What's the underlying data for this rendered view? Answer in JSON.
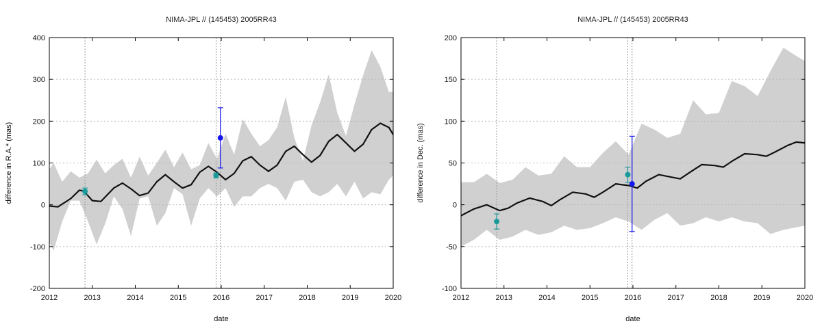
{
  "chart_data": [
    {
      "type": "line",
      "title": "NIMA-JPL // (145453) 2005RR43",
      "xlabel": "date",
      "ylabel": "difference in R.A.* (mas)",
      "xlim": [
        2012,
        2020
      ],
      "ylim": [
        -200,
        400
      ],
      "xticks": [
        "2012",
        "2013",
        "2014",
        "2015",
        "2016",
        "2017",
        "2018",
        "2019",
        "2020"
      ],
      "yticks": [
        "-200",
        "-100",
        "0",
        "100",
        "200",
        "300",
        "400"
      ],
      "grid": true,
      "vlines": [
        2012.83,
        2015.88,
        2015.98
      ],
      "model_line": {
        "x": [
          2012.0,
          2012.2,
          2012.5,
          2012.7,
          2012.8,
          2013.0,
          2013.2,
          2013.5,
          2013.7,
          2013.9,
          2014.1,
          2014.3,
          2014.5,
          2014.7,
          2014.9,
          2015.1,
          2015.3,
          2015.5,
          2015.7,
          2015.9,
          2016.1,
          2016.3,
          2016.5,
          2016.7,
          2016.9,
          2017.1,
          2017.3,
          2017.5,
          2017.7,
          2017.9,
          2018.1,
          2018.3,
          2018.5,
          2018.7,
          2018.9,
          2019.1,
          2019.3,
          2019.5,
          2019.7,
          2019.9,
          2020.0
        ],
        "y": [
          -3,
          -5,
          15,
          35,
          33,
          10,
          8,
          40,
          52,
          38,
          22,
          28,
          55,
          72,
          55,
          40,
          48,
          78,
          92,
          78,
          60,
          75,
          105,
          115,
          95,
          80,
          95,
          128,
          140,
          120,
          102,
          118,
          152,
          168,
          148,
          128,
          145,
          180,
          195,
          185,
          168
        ]
      },
      "envelope": {
        "x": [
          2012.0,
          2012.1,
          2012.3,
          2012.5,
          2012.7,
          2012.9,
          2013.1,
          2013.3,
          2013.5,
          2013.7,
          2013.9,
          2014.1,
          2014.3,
          2014.5,
          2014.7,
          2014.9,
          2015.1,
          2015.3,
          2015.5,
          2015.7,
          2015.9,
          2016.1,
          2016.3,
          2016.5,
          2016.7,
          2016.9,
          2017.1,
          2017.3,
          2017.5,
          2017.7,
          2017.9,
          2018.1,
          2018.3,
          2018.5,
          2018.7,
          2018.9,
          2019.1,
          2019.3,
          2019.5,
          2019.7,
          2019.9,
          2020.0
        ],
        "upper": [
          85,
          100,
          55,
          80,
          65,
          75,
          108,
          75,
          95,
          110,
          65,
          115,
          70,
          100,
          132,
          90,
          125,
          85,
          95,
          148,
          110,
          170,
          120,
          205,
          170,
          140,
          155,
          185,
          258,
          160,
          105,
          190,
          245,
          312,
          220,
          165,
          240,
          310,
          370,
          330,
          270,
          270
        ],
        "lower": [
          -90,
          -110,
          -40,
          10,
          10,
          -40,
          -95,
          -45,
          20,
          -10,
          -75,
          15,
          20,
          -50,
          -20,
          40,
          25,
          -50,
          15,
          40,
          20,
          40,
          -5,
          20,
          20,
          40,
          50,
          40,
          10,
          55,
          60,
          30,
          20,
          30,
          50,
          20,
          55,
          15,
          30,
          25,
          60,
          70
        ]
      },
      "observations": [
        {
          "x": 2012.83,
          "y": 32,
          "err": 8,
          "color": "#1a9a9a"
        },
        {
          "x": 2015.88,
          "y": 70,
          "err": 6,
          "color": "#1a9a9a"
        },
        {
          "x": 2015.98,
          "y": 160,
          "err": 72,
          "color": "#1515ee"
        }
      ]
    },
    {
      "type": "line",
      "title": "NIMA-JPL // (145453) 2005RR43",
      "xlabel": "date",
      "ylabel": "difference in Dec. (mas)",
      "xlim": [
        2012,
        2020
      ],
      "ylim": [
        -100,
        200
      ],
      "xticks": [
        "2012",
        "2013",
        "2014",
        "2015",
        "2016",
        "2017",
        "2018",
        "2019",
        "2020"
      ],
      "yticks": [
        "-100",
        "-50",
        "0",
        "50",
        "100",
        "150",
        "200"
      ],
      "grid": true,
      "vlines": [
        2012.83,
        2015.88,
        2015.98
      ],
      "model_line": {
        "x": [
          2012.0,
          2012.3,
          2012.6,
          2012.9,
          2013.1,
          2013.3,
          2013.6,
          2013.9,
          2014.1,
          2014.3,
          2014.6,
          2014.9,
          2015.1,
          2015.3,
          2015.6,
          2015.9,
          2016.1,
          2016.3,
          2016.6,
          2016.9,
          2017.1,
          2017.3,
          2017.6,
          2017.9,
          2018.1,
          2018.3,
          2018.6,
          2018.9,
          2019.1,
          2019.3,
          2019.6,
          2019.8,
          2020.0
        ],
        "y": [
          -13,
          -5,
          0,
          -7,
          -4,
          2,
          8,
          4,
          -1,
          6,
          15,
          13,
          9,
          15,
          25,
          23,
          20,
          28,
          36,
          33,
          31,
          38,
          48,
          47,
          45,
          52,
          61,
          60,
          58,
          63,
          71,
          75,
          74
        ]
      },
      "envelope": {
        "x": [
          2012.0,
          2012.3,
          2012.6,
          2012.9,
          2013.2,
          2013.5,
          2013.8,
          2014.1,
          2014.4,
          2014.7,
          2015.0,
          2015.3,
          2015.6,
          2015.9,
          2016.2,
          2016.5,
          2016.8,
          2017.1,
          2017.4,
          2017.7,
          2018.0,
          2018.3,
          2018.6,
          2018.9,
          2019.2,
          2019.5,
          2019.8,
          2020.0
        ],
        "upper": [
          27,
          27,
          37,
          26,
          30,
          45,
          35,
          37,
          58,
          45,
          45,
          62,
          76,
          60,
          97,
          90,
          80,
          85,
          125,
          108,
          110,
          148,
          142,
          130,
          160,
          188,
          178,
          172
        ],
        "lower": [
          -50,
          -42,
          -30,
          -42,
          -38,
          -30,
          -36,
          -33,
          -25,
          -30,
          -28,
          -22,
          -15,
          -20,
          -30,
          -18,
          -10,
          -25,
          -22,
          -15,
          -20,
          -15,
          -20,
          -22,
          -35,
          -30,
          -27,
          -25
        ]
      },
      "observations": [
        {
          "x": 2012.83,
          "y": -20,
          "err": 9,
          "color": "#1a9a9a"
        },
        {
          "x": 2015.88,
          "y": 36,
          "err": 9,
          "color": "#1a9a9a"
        },
        {
          "x": 2015.98,
          "y": 25,
          "err": 57,
          "color": "#1515ee"
        }
      ]
    }
  ],
  "colors": {
    "envelope": "#d0d0d0",
    "model_line": "#111111",
    "grid": "#b8b8b8"
  }
}
